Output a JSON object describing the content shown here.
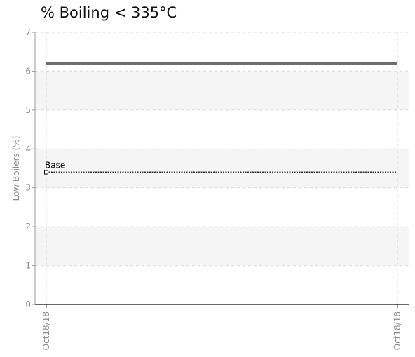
{
  "chart_data": {
    "type": "line",
    "title": "% Boiling < 335°C",
    "ylabel": "Low Boilers (%)",
    "xlabel": "",
    "x_ticks": [
      "Oct18/18",
      "Oct18/18"
    ],
    "ylim": [
      0,
      7
    ],
    "yticks": [
      0,
      1,
      2,
      3,
      4,
      5,
      6,
      7
    ],
    "grid": true,
    "series": [
      {
        "values": [
          6.2,
          6.2
        ],
        "color": "#6e6e6e",
        "style": "solid"
      },
      {
        "name": "Base",
        "values": [
          3.4,
          3.4
        ],
        "color": "#333333",
        "style": "dotted"
      }
    ],
    "annotations": [
      {
        "text": "Base",
        "x_index": 0,
        "y": 3.4
      }
    ]
  }
}
